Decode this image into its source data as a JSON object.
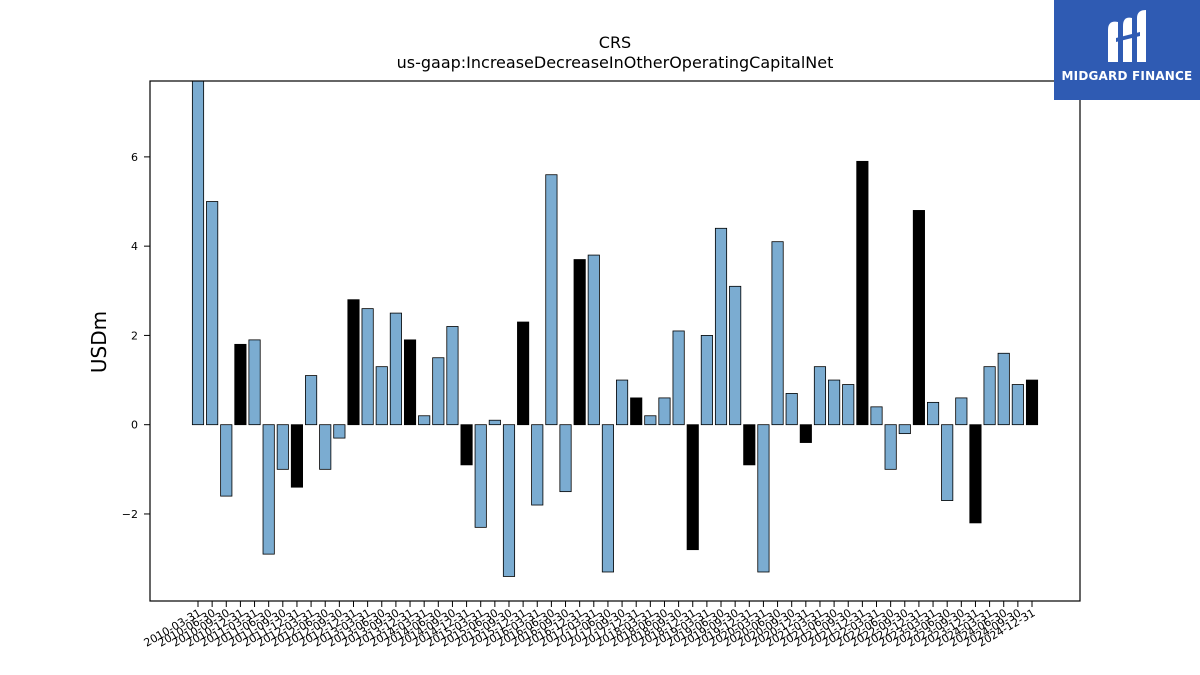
{
  "chart_data": {
    "type": "bar",
    "title": "CRS",
    "subtitle": "us-gaap:IncreaseDecreaseInOtherOperatingCapitalNet",
    "ylabel": "USDm",
    "xlabel": "",
    "ylim": [
      -3.95,
      7.7
    ],
    "yticks": [
      -2,
      0,
      2,
      4,
      6
    ],
    "grid": false,
    "colors": {
      "default": "#7bacd1",
      "highlight": "#000000",
      "edge": "#000000"
    },
    "categories": [
      "2010-03-31",
      "2010-06-30",
      "2010-09-30",
      "2010-12-31",
      "2011-03-31",
      "2011-06-30",
      "2011-09-30",
      "2011-12-31",
      "2012-03-31",
      "2012-06-30",
      "2012-09-30",
      "2012-12-31",
      "2013-03-31",
      "2013-06-30",
      "2013-09-30",
      "2013-12-31",
      "2014-03-31",
      "2014-06-30",
      "2014-09-30",
      "2014-12-31",
      "2015-03-31",
      "2015-06-30",
      "2015-09-30",
      "2015-12-31",
      "2016-03-31",
      "2016-06-30",
      "2016-09-30",
      "2016-12-31",
      "2017-03-31",
      "2017-06-30",
      "2017-09-30",
      "2017-12-31",
      "2018-03-31",
      "2018-06-30",
      "2018-09-30",
      "2018-12-31",
      "2019-03-31",
      "2019-06-30",
      "2019-09-30",
      "2019-12-31",
      "2020-03-31",
      "2020-06-30",
      "2020-09-30",
      "2020-12-31",
      "2021-03-31",
      "2021-06-30",
      "2021-09-30",
      "2021-12-31",
      "2022-03-31",
      "2022-06-30",
      "2022-09-30",
      "2022-12-31",
      "2023-03-31",
      "2023-06-30",
      "2023-09-30",
      "2023-12-31",
      "2024-03-31",
      "2024-06-30",
      "2024-09-30",
      "2024-12-31"
    ],
    "values": [
      7.8,
      5.0,
      -1.6,
      1.8,
      1.9,
      -2.9,
      -1.0,
      -1.4,
      1.1,
      -1.0,
      -0.3,
      2.8,
      2.6,
      1.3,
      2.5,
      1.9,
      0.2,
      1.5,
      2.2,
      -0.9,
      -2.3,
      0.1,
      -3.4,
      2.3,
      -1.8,
      5.6,
      -1.5,
      3.7,
      3.8,
      -3.3,
      1.0,
      0.6,
      0.2,
      0.6,
      2.1,
      -2.8,
      2.0,
      4.4,
      3.1,
      -0.9,
      -3.3,
      4.1,
      0.7,
      -0.4,
      1.3,
      1.0,
      0.9,
      5.9,
      0.4,
      -1.0,
      -0.2,
      4.8,
      0.5,
      -1.7,
      0.6,
      -2.2,
      1.3,
      1.6,
      0.9,
      1.0
    ],
    "highlight": [
      false,
      false,
      false,
      true,
      false,
      false,
      false,
      true,
      false,
      false,
      false,
      true,
      false,
      false,
      false,
      true,
      false,
      false,
      false,
      true,
      false,
      false,
      false,
      true,
      false,
      false,
      false,
      true,
      false,
      false,
      false,
      true,
      false,
      false,
      false,
      true,
      false,
      false,
      false,
      true,
      false,
      false,
      false,
      true,
      false,
      false,
      false,
      true,
      false,
      false,
      false,
      true,
      false,
      false,
      false,
      true,
      false,
      false,
      false,
      true
    ]
  },
  "logo": {
    "text": "MIDGARD FINANCE"
  }
}
